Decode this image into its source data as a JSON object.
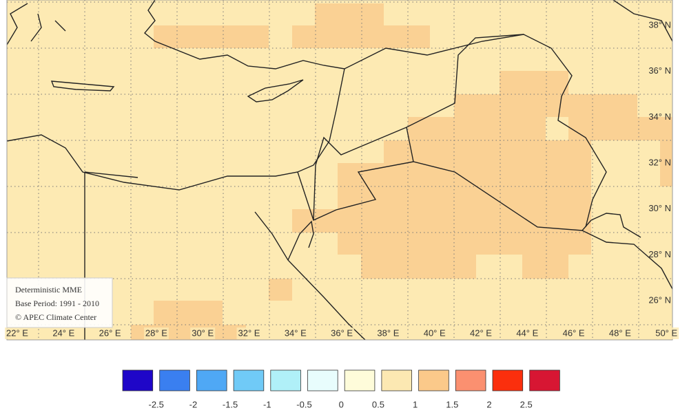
{
  "map": {
    "lon_labels": [
      "22° E",
      "24° E",
      "26° E",
      "28° E",
      "30° E",
      "32° E",
      "34° E",
      "36° E",
      "38° E",
      "40° E",
      "42° E",
      "44° E",
      "46° E",
      "48° E",
      "50° E"
    ],
    "lat_labels": [
      "38° N",
      "36° N",
      "34° N",
      "32° N",
      "30° N",
      "28° N",
      "26° N"
    ]
  },
  "info_box": [
    "Deterministic MME",
    "Base Period: 1991 - 2010",
    "© APEC Climate Center"
  ],
  "colorbar": {
    "colors": [
      "#1f06c8",
      "#3a7ff0",
      "#4fa8f5",
      "#70caf7",
      "#b0f0f8",
      "#e8fdfd",
      "#fefcda",
      "#fce8b2",
      "#fbc98a",
      "#fb9070",
      "#fb2f0d",
      "#d71633"
    ],
    "labels": [
      "-2.5",
      "-2",
      "-1.5",
      "-1",
      "-0.5",
      "0",
      "0.5",
      "1",
      "1.5",
      "2",
      "2.5"
    ]
  }
}
